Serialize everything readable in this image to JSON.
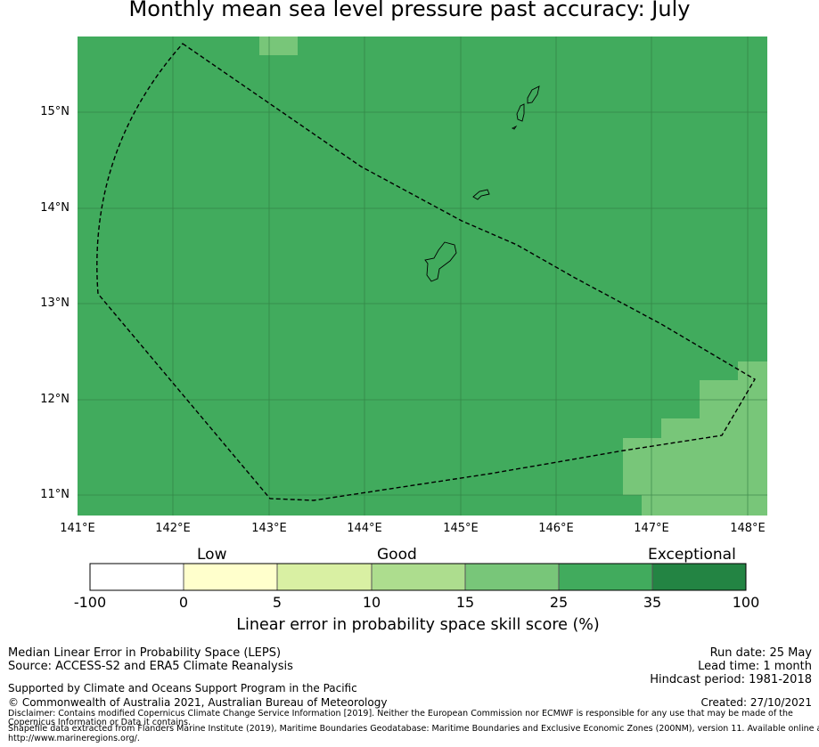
{
  "title": "Monthly mean sea level pressure past accuracy: July",
  "map": {
    "lat_ticks": [
      "15°N",
      "14°N",
      "13°N",
      "12°N",
      "11°N"
    ],
    "lon_ticks": [
      "141°E",
      "142°E",
      "143°E",
      "144°E",
      "145°E",
      "146°E",
      "147°E",
      "148°E"
    ],
    "colors": {
      "background_cell": "#41ab5d",
      "higher_cell": "#78c679",
      "boundary": "#000000"
    },
    "grid_lines": true,
    "boundary_style": "dashed",
    "cells_with_15_to_25": [
      "top-left small cell near 143°E 15.8°N",
      "south-east corner block"
    ],
    "dominant_class": "25-35"
  },
  "colorbar": {
    "categories": [
      "Low",
      "Good",
      "Exceptional"
    ],
    "ticks": [
      "-100",
      "0",
      "5",
      "10",
      "15",
      "25",
      "35",
      "100"
    ],
    "segment_colors": [
      "#ffffff",
      "#ffffcc",
      "#d9f0a3",
      "#addd8e",
      "#78c679",
      "#41ab5d",
      "#238443"
    ],
    "label": "Linear error in probability space skill score (%)"
  },
  "footer": {
    "line1": "Median Linear Error in Probability Space (LEPS)",
    "line2": "Source: ACCESS-S2 and ERA5 Climate Reanalysis",
    "support": "Supported by Climate and Oceans Support Program in the Pacific",
    "copyright": "© Commonwealth of Australia 2021, Australian Bureau of Meteorology",
    "disclaimer1": "Disclaimer: Contains modified Copernicus Climate Change Service Information [2019]. Neither the European Commission nor ECMWF is responsible for any use that may be made of the",
    "disclaimer2": "Copernicus Information or Data it contains.",
    "shapefile1": "Shapefile data extracted from Flanders Marine Institute (2019), Maritime Boundaries Geodatabase: Maritime Boundaries and Exclusive Economic Zones (200NM), version 11. Available online at",
    "shapefile2": "http://www.marineregions.org/.",
    "run_date": "Run date: 25 May",
    "lead_time": "Lead time: 1 month",
    "hindcast": "Hindcast period: 1981-2018",
    "created": "Created: 27/10/2021"
  }
}
